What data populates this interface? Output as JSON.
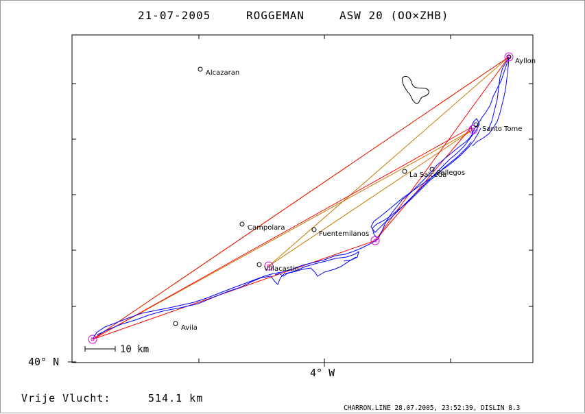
{
  "title": {
    "date": "21-07-2005",
    "pilot": "ROGGEMAN",
    "glider": "ASW 20 (OO×ZHB)"
  },
  "axes": {
    "lat_label": "40° N",
    "lon_label": "4° W"
  },
  "scale_bar": "10 km",
  "towns": [
    {
      "name": "Alcazaran"
    },
    {
      "name": "Ayllon"
    },
    {
      "name": "Santo Tome"
    },
    {
      "name": "La Salceda"
    },
    {
      "name": "Pallegos"
    },
    {
      "name": "Campolara"
    },
    {
      "name": "Fuentemilanos"
    },
    {
      "name": "Villacastin"
    },
    {
      "name": "Avila"
    }
  ],
  "footer": {
    "label": "Vrije Vlucht:",
    "distance": "514.1 km"
  },
  "credit": "CHARRON.LINE 28.07.2005, 23:52:39, DISLIN 8.3",
  "colors": {
    "track": "#0000ff",
    "task_lines": "#ff0000",
    "optimized_lines": "#c87800",
    "outer_line": "#66dd00",
    "turnpoints": "#e000e0",
    "frame": "#000000"
  }
}
